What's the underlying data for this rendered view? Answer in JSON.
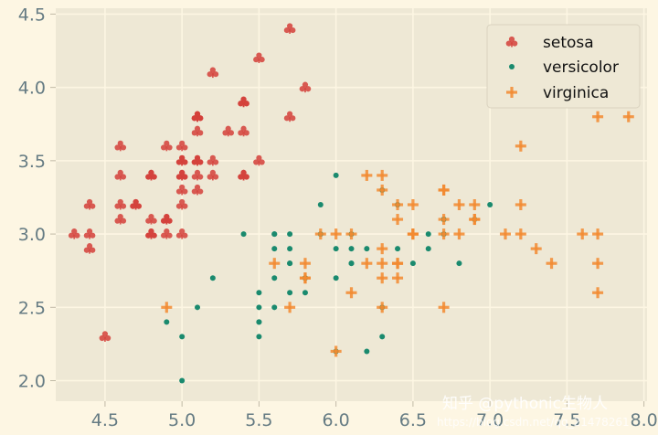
{
  "chart_data": {
    "type": "scatter",
    "title": "",
    "xlabel": "",
    "ylabel": "",
    "xlim": [
      4.18,
      8.02
    ],
    "ylim": [
      1.86,
      4.54
    ],
    "grid": true,
    "legend_position": "top-right",
    "x_ticks": [
      "4.5",
      "5.0",
      "5.5",
      "6.0",
      "6.5",
      "7.0",
      "7.5",
      "8.0"
    ],
    "y_ticks": [
      "2.0",
      "2.5",
      "3.0",
      "3.5",
      "4.0",
      "4.5"
    ],
    "series": [
      {
        "name": "setosa",
        "marker": "club",
        "color": "#d43f3a",
        "points": [
          [
            5.1,
            3.5
          ],
          [
            4.9,
            3.0
          ],
          [
            4.7,
            3.2
          ],
          [
            4.6,
            3.1
          ],
          [
            5.0,
            3.6
          ],
          [
            5.4,
            3.9
          ],
          [
            4.6,
            3.4
          ],
          [
            5.0,
            3.4
          ],
          [
            4.4,
            2.9
          ],
          [
            4.9,
            3.1
          ],
          [
            5.4,
            3.7
          ],
          [
            4.8,
            3.4
          ],
          [
            4.8,
            3.0
          ],
          [
            4.3,
            3.0
          ],
          [
            5.8,
            4.0
          ],
          [
            5.7,
            4.4
          ],
          [
            5.4,
            3.9
          ],
          [
            5.1,
            3.5
          ],
          [
            5.7,
            3.8
          ],
          [
            5.1,
            3.8
          ],
          [
            5.4,
            3.4
          ],
          [
            5.1,
            3.7
          ],
          [
            4.6,
            3.6
          ],
          [
            5.1,
            3.3
          ],
          [
            4.8,
            3.4
          ],
          [
            5.0,
            3.0
          ],
          [
            5.0,
            3.4
          ],
          [
            5.2,
            3.5
          ],
          [
            5.2,
            3.4
          ],
          [
            4.7,
            3.2
          ],
          [
            4.8,
            3.1
          ],
          [
            5.4,
            3.4
          ],
          [
            5.2,
            4.1
          ],
          [
            5.5,
            4.2
          ],
          [
            4.9,
            3.1
          ],
          [
            5.0,
            3.2
          ],
          [
            5.5,
            3.5
          ],
          [
            4.9,
            3.6
          ],
          [
            4.4,
            3.0
          ],
          [
            5.1,
            3.4
          ],
          [
            5.0,
            3.5
          ],
          [
            4.5,
            2.3
          ],
          [
            4.4,
            3.2
          ],
          [
            5.0,
            3.5
          ],
          [
            5.1,
            3.8
          ],
          [
            4.8,
            3.0
          ],
          [
            5.1,
            3.8
          ],
          [
            4.6,
            3.2
          ],
          [
            5.3,
            3.7
          ],
          [
            5.0,
            3.3
          ]
        ]
      },
      {
        "name": "versicolor",
        "marker": "dot",
        "color": "#1a8a6e",
        "points": [
          [
            7.0,
            3.2
          ],
          [
            6.4,
            3.2
          ],
          [
            6.9,
            3.1
          ],
          [
            5.5,
            2.3
          ],
          [
            6.5,
            2.8
          ],
          [
            5.7,
            2.8
          ],
          [
            6.3,
            3.3
          ],
          [
            4.9,
            2.4
          ],
          [
            6.6,
            2.9
          ],
          [
            5.2,
            2.7
          ],
          [
            5.0,
            2.0
          ],
          [
            5.9,
            3.0
          ],
          [
            6.0,
            2.2
          ],
          [
            6.1,
            2.9
          ],
          [
            5.6,
            2.9
          ],
          [
            6.7,
            3.1
          ],
          [
            5.6,
            3.0
          ],
          [
            5.8,
            2.7
          ],
          [
            6.2,
            2.2
          ],
          [
            5.6,
            2.5
          ],
          [
            5.9,
            3.2
          ],
          [
            6.1,
            2.8
          ],
          [
            6.3,
            2.5
          ],
          [
            6.1,
            2.8
          ],
          [
            6.4,
            2.9
          ],
          [
            6.6,
            3.0
          ],
          [
            6.8,
            2.8
          ],
          [
            6.7,
            3.0
          ],
          [
            6.0,
            2.9
          ],
          [
            5.7,
            2.6
          ],
          [
            5.5,
            2.4
          ],
          [
            5.5,
            2.4
          ],
          [
            5.8,
            2.7
          ],
          [
            6.0,
            2.7
          ],
          [
            5.4,
            3.0
          ],
          [
            6.0,
            3.4
          ],
          [
            6.7,
            3.1
          ],
          [
            6.3,
            2.3
          ],
          [
            5.6,
            3.0
          ],
          [
            5.5,
            2.5
          ],
          [
            5.5,
            2.6
          ],
          [
            6.1,
            3.0
          ],
          [
            5.8,
            2.6
          ],
          [
            5.0,
            2.3
          ],
          [
            5.6,
            2.7
          ],
          [
            5.7,
            3.0
          ],
          [
            5.7,
            2.9
          ],
          [
            6.2,
            2.9
          ],
          [
            5.1,
            2.5
          ],
          [
            5.7,
            2.8
          ]
        ]
      },
      {
        "name": "virginica",
        "marker": "plus",
        "color": "#f28a30",
        "points": [
          [
            6.3,
            3.3
          ],
          [
            5.8,
            2.7
          ],
          [
            7.1,
            3.0
          ],
          [
            6.3,
            2.9
          ],
          [
            6.5,
            3.0
          ],
          [
            7.6,
            3.0
          ],
          [
            4.9,
            2.5
          ],
          [
            7.3,
            2.9
          ],
          [
            6.7,
            2.5
          ],
          [
            7.2,
            3.6
          ],
          [
            6.5,
            3.2
          ],
          [
            6.4,
            2.7
          ],
          [
            6.8,
            3.0
          ],
          [
            5.7,
            2.5
          ],
          [
            5.8,
            2.8
          ],
          [
            6.4,
            3.2
          ],
          [
            6.5,
            3.0
          ],
          [
            7.7,
            3.8
          ],
          [
            7.7,
            2.6
          ],
          [
            6.0,
            2.2
          ],
          [
            6.9,
            3.2
          ],
          [
            5.6,
            2.8
          ],
          [
            7.7,
            2.8
          ],
          [
            6.3,
            2.7
          ],
          [
            6.7,
            3.3
          ],
          [
            7.2,
            3.2
          ],
          [
            6.2,
            2.8
          ],
          [
            6.1,
            3.0
          ],
          [
            6.4,
            2.8
          ],
          [
            7.2,
            3.0
          ],
          [
            7.4,
            2.8
          ],
          [
            7.9,
            3.8
          ],
          [
            6.4,
            2.8
          ],
          [
            6.3,
            2.8
          ],
          [
            6.1,
            2.6
          ],
          [
            7.7,
            3.0
          ],
          [
            6.3,
            3.4
          ],
          [
            6.4,
            3.1
          ],
          [
            6.0,
            3.0
          ],
          [
            6.9,
            3.1
          ],
          [
            6.7,
            3.1
          ],
          [
            6.9,
            3.1
          ],
          [
            5.8,
            2.7
          ],
          [
            6.8,
            3.2
          ],
          [
            6.7,
            3.3
          ],
          [
            6.7,
            3.0
          ],
          [
            6.3,
            2.5
          ],
          [
            6.5,
            3.0
          ],
          [
            6.2,
            3.4
          ],
          [
            5.9,
            3.0
          ]
        ]
      }
    ]
  },
  "watermark": {
    "line1": "知乎 @pythonic生物人",
    "line2": "https://blog.csdn.net/qq_21478261"
  }
}
